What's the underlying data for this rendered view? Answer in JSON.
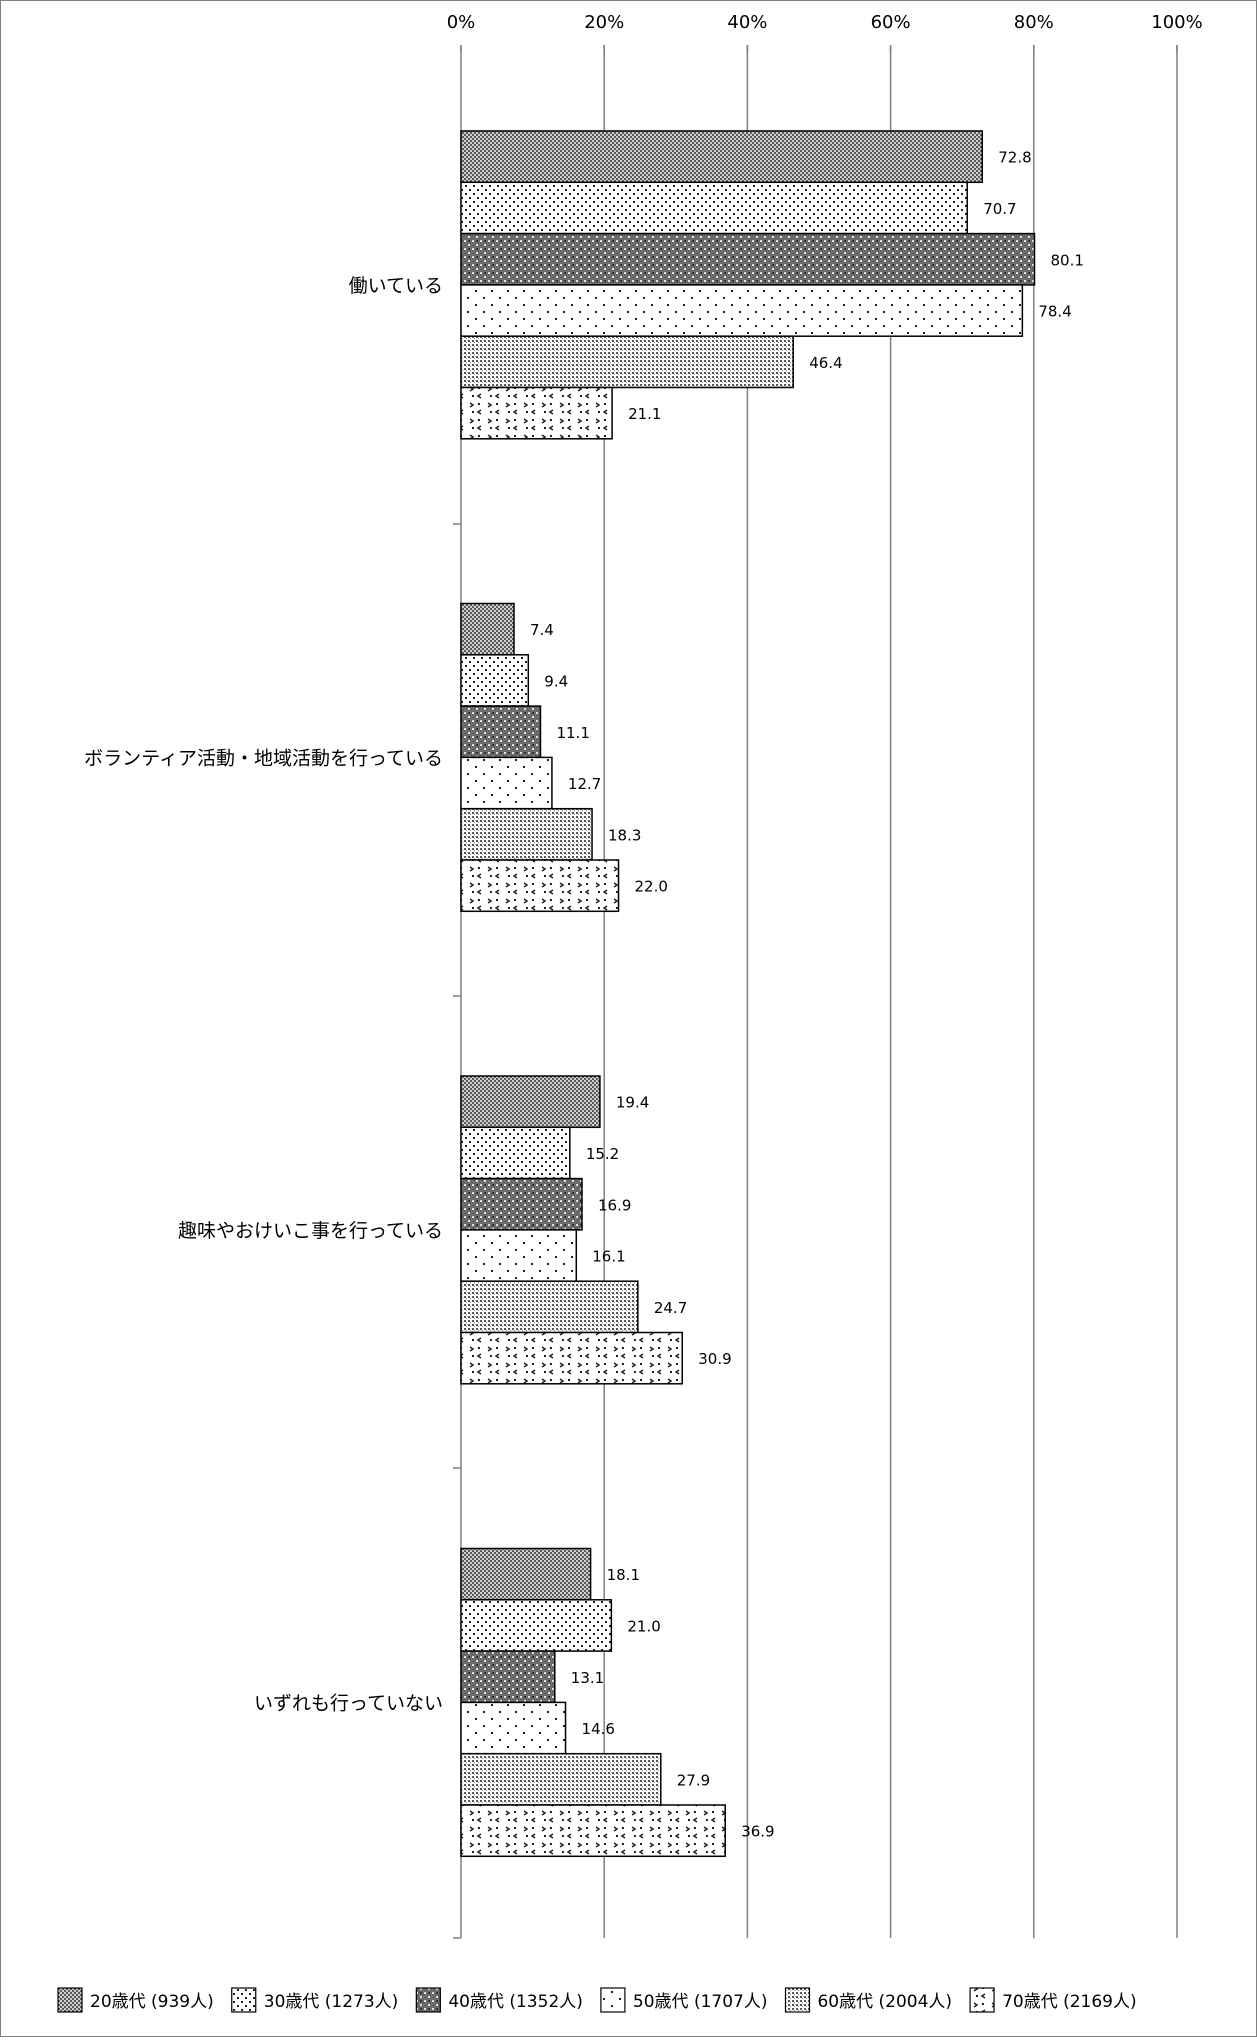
{
  "chart_data": {
    "type": "bar",
    "orientation": "horizontal",
    "categories": [
      "働いている",
      "ボランティア活動・地域活動を行っている",
      "趣味やおけいこ事を行っている",
      "いずれも行っていない"
    ],
    "series": [
      {
        "name": "20歳代 (939人)",
        "values": [
          72.8,
          7.4,
          19.4,
          18.1
        ],
        "pattern": "dense-crosshatch"
      },
      {
        "name": "30歳代 (1273人)",
        "values": [
          70.7,
          9.4,
          15.2,
          21.0
        ],
        "pattern": "fine-dots"
      },
      {
        "name": "40歳代 (1352人)",
        "values": [
          80.1,
          11.1,
          16.9,
          13.1
        ],
        "pattern": "dark-checker-dots"
      },
      {
        "name": "50歳代 (1707人)",
        "values": [
          78.4,
          12.7,
          16.1,
          14.6
        ],
        "pattern": "sparse-dots"
      },
      {
        "name": "60歳代 (2004人)",
        "values": [
          46.4,
          18.3,
          24.7,
          27.9
        ],
        "pattern": "medium-dots"
      },
      {
        "name": "70歳代 (2169人)",
        "values": [
          21.1,
          22.0,
          30.9,
          36.9
        ],
        "pattern": "chevron-marks"
      }
    ],
    "x_ticks": [
      "0%",
      "20%",
      "40%",
      "60%",
      "80%",
      "100%"
    ],
    "xlim": [
      0,
      100
    ],
    "grid": true,
    "gridline_color": "#808080",
    "bar_stroke": "#000000",
    "legend_position": "bottom"
  }
}
